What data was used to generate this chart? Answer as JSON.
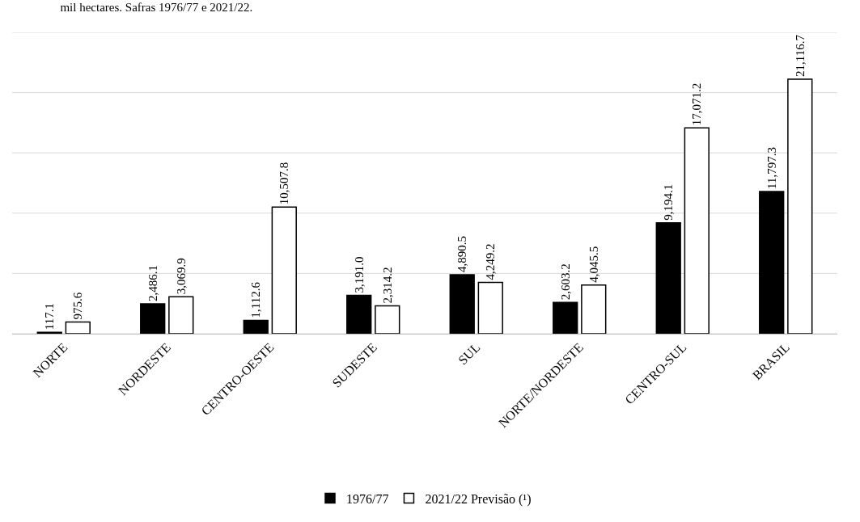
{
  "chart_data": {
    "type": "bar",
    "title": "mil hectares. Safras 1976/77 e 2021/22.",
    "categories": [
      "NORTE",
      "NORDESTE",
      "CENTRO-OESTE",
      "SUDESTE",
      "SUL",
      "NORTE/NORDESTE",
      "CENTRO-SUL",
      "BRASIL"
    ],
    "series": [
      {
        "name": "1976/77",
        "color": "#000000",
        "values": [
          117.1,
          2486.1,
          1112.6,
          3191.0,
          4890.5,
          2603.2,
          9194.1,
          11797.3
        ],
        "value_labels": [
          "117.1",
          "2,486.1",
          "1,112.6",
          "3,191.0",
          "4,890.5",
          "2,603.2",
          "9,194.1",
          "11,797.3"
        ]
      },
      {
        "name": "2021/22 Previsão (¹)",
        "color": "#ffffff",
        "values": [
          975.6,
          3069.9,
          10507.8,
          2314.2,
          4249.2,
          4045.5,
          17071.2,
          21116.7
        ],
        "value_labels": [
          "975.6",
          "3,069.9",
          "10,507.8",
          "2,314.2",
          "4,249.2",
          "4,045.5",
          "17,071.2",
          "21,116.7"
        ]
      }
    ],
    "ylim": [
      0,
      25000
    ],
    "yticks": [
      {
        "value": 0,
        "label": null
      },
      {
        "value": 5000,
        "label": null
      },
      {
        "value": 10000,
        "label": null
      },
      {
        "value": 15000,
        "label": null
      },
      {
        "value": 20000,
        "label": null
      },
      {
        "value": 25000,
        "label": null
      }
    ],
    "tick_labels": "x",
    "grid": "y",
    "legend": "bottom"
  }
}
